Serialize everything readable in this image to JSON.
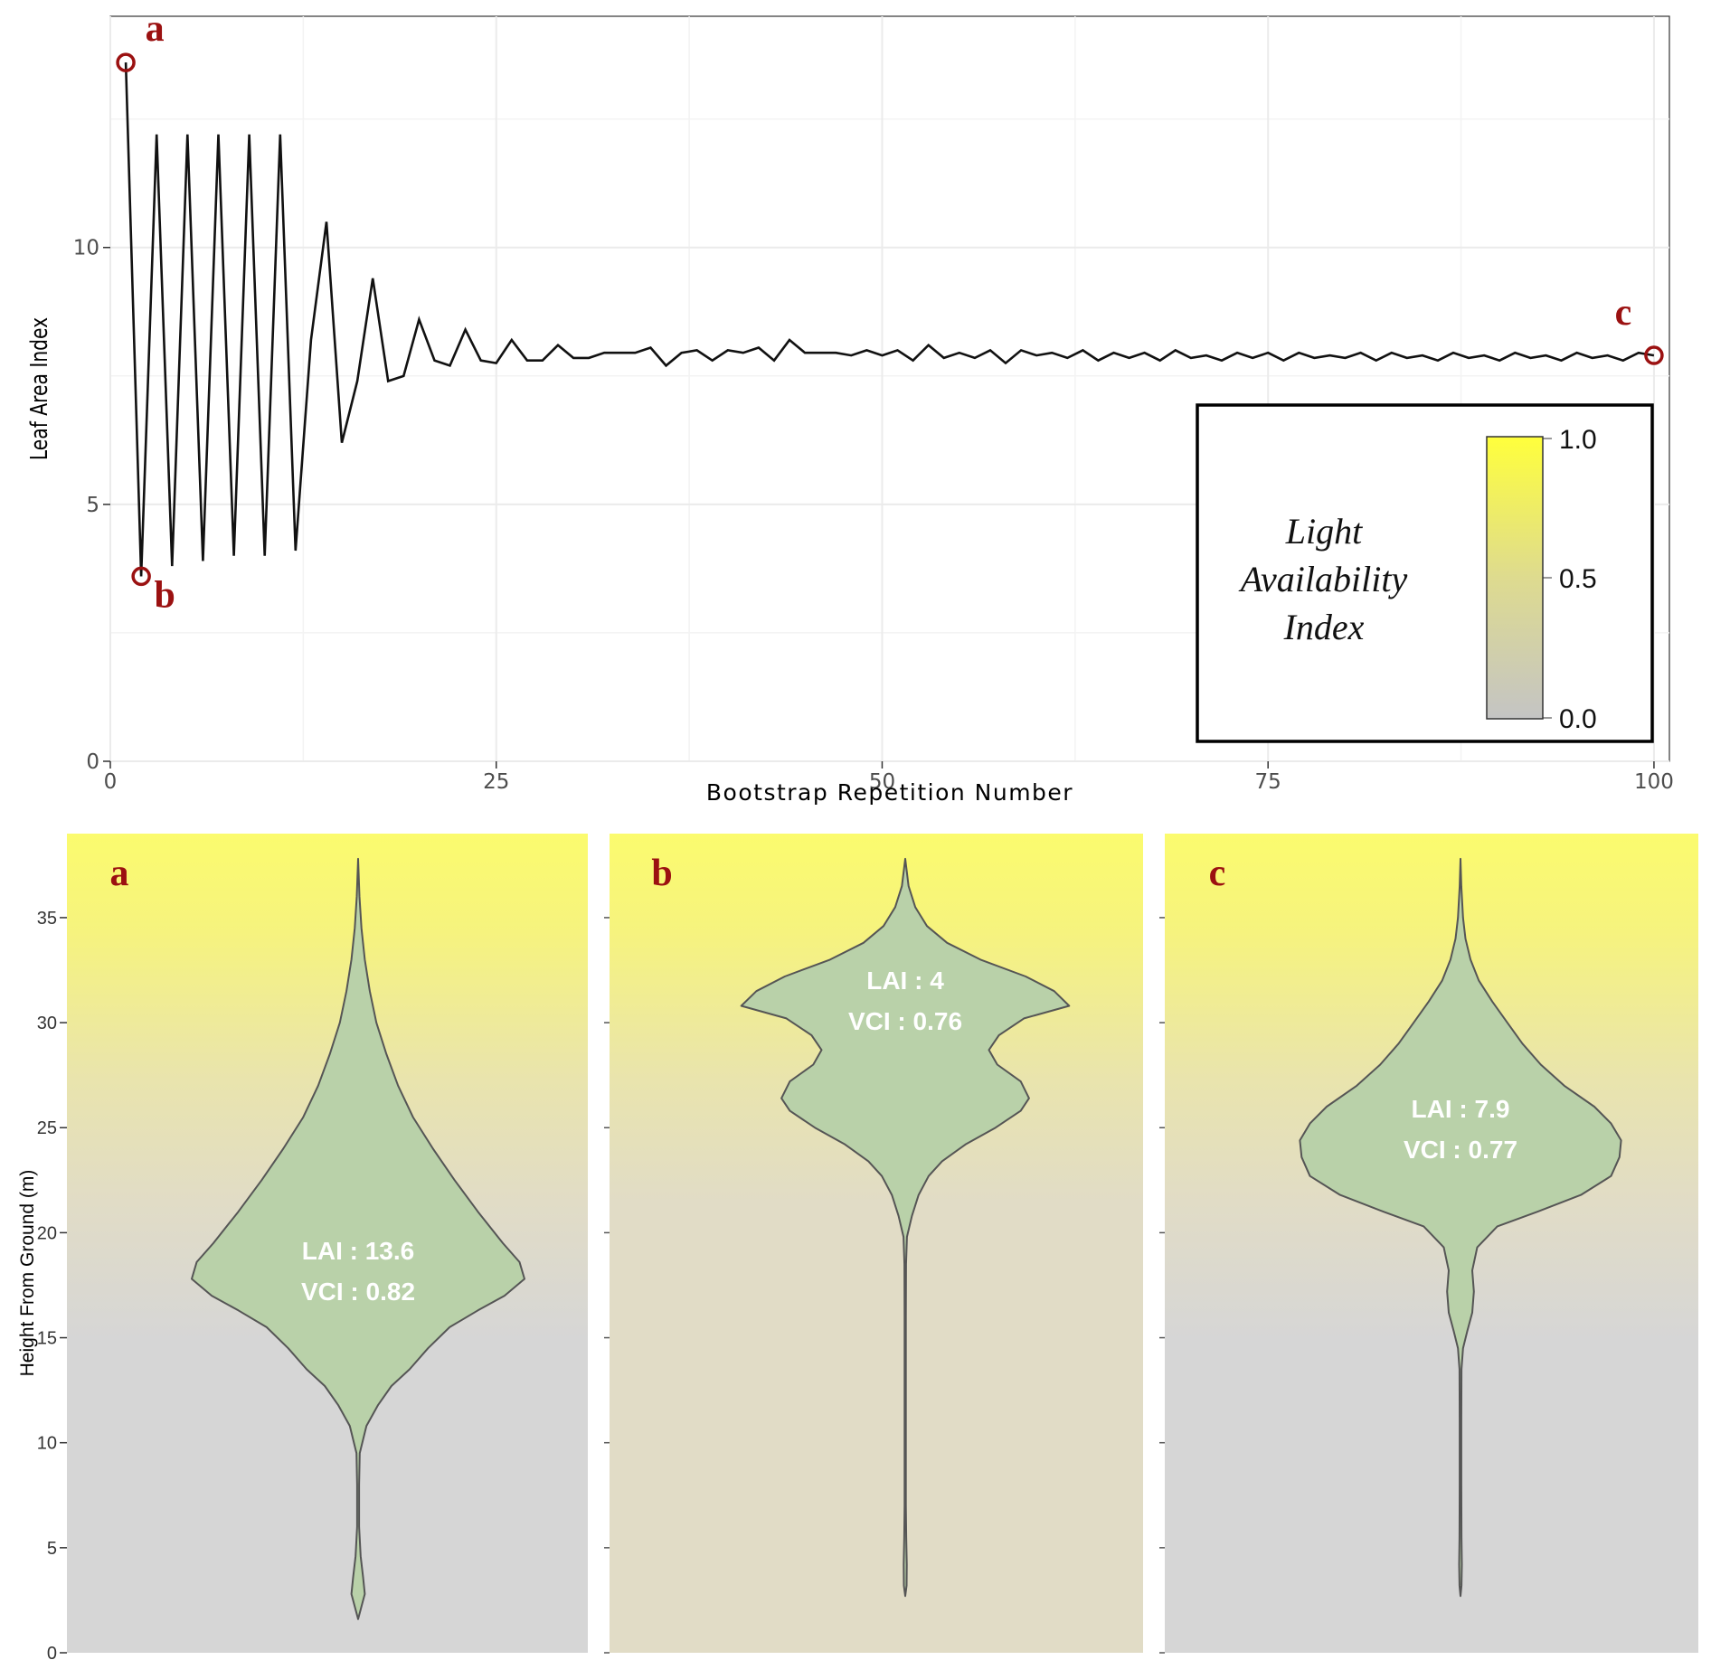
{
  "colors": {
    "line": "#111111",
    "marker": "#9b1111",
    "violin_fill": "#b9d1a9",
    "violin_stroke": "#555555",
    "light_high": "#fbfb6e",
    "light_mid": "#e1dcc6",
    "light_low": "#d6d6d6",
    "grid": "#ebebeb"
  },
  "chart_data": [
    {
      "type": "line",
      "xlabel": "Bootstrap Repetition Number",
      "ylabel": "Leaf Area Index",
      "xlim": [
        0,
        101
      ],
      "ylim": [
        0,
        14.5
      ],
      "xticks": [
        0,
        25,
        50,
        75,
        100
      ],
      "yticks": [
        0,
        5,
        10
      ],
      "x": [
        1,
        2,
        3,
        4,
        5,
        6,
        7,
        8,
        9,
        10,
        11,
        12,
        13,
        14,
        15,
        16,
        17,
        18,
        19,
        20,
        21,
        22,
        23,
        24,
        25,
        26,
        27,
        28,
        29,
        30,
        31,
        32,
        33,
        34,
        35,
        36,
        37,
        38,
        39,
        40,
        41,
        42,
        43,
        44,
        45,
        46,
        47,
        48,
        49,
        50,
        51,
        52,
        53,
        54,
        55,
        56,
        57,
        58,
        59,
        60,
        61,
        62,
        63,
        64,
        65,
        66,
        67,
        68,
        69,
        70,
        71,
        72,
        73,
        74,
        75,
        76,
        77,
        78,
        79,
        80,
        81,
        82,
        83,
        84,
        85,
        86,
        87,
        88,
        89,
        90,
        91,
        92,
        93,
        94,
        95,
        96,
        97,
        98,
        99,
        100
      ],
      "y": [
        13.6,
        3.6,
        12.2,
        3.8,
        12.2,
        3.9,
        12.2,
        4.0,
        12.2,
        4.0,
        12.2,
        4.1,
        8.2,
        10.5,
        6.2,
        7.4,
        9.4,
        7.4,
        7.5,
        8.6,
        7.8,
        7.7,
        8.4,
        7.8,
        7.75,
        8.2,
        7.8,
        7.8,
        8.1,
        7.85,
        7.85,
        7.95,
        7.95,
        7.95,
        8.05,
        7.7,
        7.95,
        8.0,
        7.8,
        8.0,
        7.95,
        8.05,
        7.8,
        8.2,
        7.95,
        7.95,
        7.95,
        7.9,
        8.0,
        7.9,
        8.0,
        7.8,
        8.1,
        7.85,
        7.95,
        7.85,
        8.0,
        7.75,
        8.0,
        7.9,
        7.95,
        7.85,
        8.0,
        7.8,
        7.95,
        7.85,
        7.95,
        7.8,
        8.0,
        7.85,
        7.9,
        7.8,
        7.95,
        7.85,
        7.95,
        7.8,
        7.95,
        7.85,
        7.9,
        7.85,
        7.95,
        7.8,
        7.95,
        7.85,
        7.9,
        7.8,
        7.95,
        7.85,
        7.9,
        7.8,
        7.95,
        7.85,
        7.9,
        7.8,
        7.95,
        7.85,
        7.9,
        7.8,
        7.95,
        7.9
      ],
      "highlights": [
        {
          "label": "a",
          "x": 1,
          "y": 13.6
        },
        {
          "label": "b",
          "x": 2,
          "y": 3.6
        },
        {
          "label": "c",
          "x": 100,
          "y": 7.9
        }
      ],
      "legend": {
        "title_lines": [
          "Light",
          "Availability",
          "Index"
        ],
        "ticks": [
          "1.0",
          "0.5",
          "0.0"
        ],
        "range": [
          0,
          1
        ],
        "placement": "bottom-right"
      }
    },
    {
      "type": "violin",
      "ylabel": "Height From Ground (m)",
      "ylim": [
        0,
        39
      ],
      "yticks": [
        0,
        5,
        10,
        15,
        20,
        25,
        30,
        35
      ],
      "panels": [
        {
          "label": "a",
          "lai_text": "LAI : 13.6",
          "vci_text": "VCI : 0.82",
          "height_range": [
            1.6,
            37.8
          ],
          "profile": [
            [
              1.6,
              0
            ],
            [
              2.2,
              0.02
            ],
            [
              2.8,
              0.04
            ],
            [
              3.6,
              0.03
            ],
            [
              4.6,
              0.015
            ],
            [
              6,
              0.006
            ],
            [
              8,
              0.006
            ],
            [
              9.5,
              0.01
            ],
            [
              10.8,
              0.05
            ],
            [
              11.8,
              0.12
            ],
            [
              12.7,
              0.2
            ],
            [
              13.5,
              0.31
            ],
            [
              14.5,
              0.42
            ],
            [
              15.5,
              0.55
            ],
            [
              16.3,
              0.72
            ],
            [
              17.0,
              0.88
            ],
            [
              17.8,
              1.0
            ],
            [
              18.6,
              0.97
            ],
            [
              19.5,
              0.87
            ],
            [
              21,
              0.72
            ],
            [
              22.5,
              0.58
            ],
            [
              24,
              0.45
            ],
            [
              25.5,
              0.33
            ],
            [
              27,
              0.24
            ],
            [
              28.5,
              0.17
            ],
            [
              30,
              0.11
            ],
            [
              31.5,
              0.07
            ],
            [
              33,
              0.04
            ],
            [
              34.5,
              0.02
            ],
            [
              36,
              0.008
            ],
            [
              37.8,
              0
            ]
          ]
        },
        {
          "label": "b",
          "lai_text": "LAI : 4",
          "vci_text": "VCI : 0.76",
          "height_range": [
            2.7,
            37.8
          ],
          "profile": [
            [
              2.7,
              0
            ],
            [
              3.2,
              0.008
            ],
            [
              4.2,
              0.009
            ],
            [
              5.5,
              0.006
            ],
            [
              7,
              0.004
            ],
            [
              10,
              0.004
            ],
            [
              13,
              0.004
            ],
            [
              16,
              0.004
            ],
            [
              18.5,
              0.005
            ],
            [
              19.8,
              0.01
            ],
            [
              20.8,
              0.04
            ],
            [
              21.8,
              0.08
            ],
            [
              22.7,
              0.14
            ],
            [
              23.4,
              0.22
            ],
            [
              24.2,
              0.36
            ],
            [
              25,
              0.54
            ],
            [
              25.8,
              0.69
            ],
            [
              26.4,
              0.74
            ],
            [
              27.2,
              0.69
            ],
            [
              28,
              0.55
            ],
            [
              28.7,
              0.5
            ],
            [
              29.4,
              0.56
            ],
            [
              30.2,
              0.71
            ],
            [
              30.8,
              0.98
            ],
            [
              31.5,
              0.89
            ],
            [
              32.2,
              0.72
            ],
            [
              33,
              0.45
            ],
            [
              33.8,
              0.25
            ],
            [
              34.6,
              0.13
            ],
            [
              35.5,
              0.06
            ],
            [
              36.5,
              0.02
            ],
            [
              37.8,
              0
            ]
          ]
        },
        {
          "label": "c",
          "lai_text": "LAI : 7.9",
          "vci_text": "VCI : 0.77",
          "height_range": [
            2.7,
            37.8
          ],
          "profile": [
            [
              2.7,
              0
            ],
            [
              3.2,
              0.006
            ],
            [
              4.2,
              0.008
            ],
            [
              5.5,
              0.006
            ],
            [
              8,
              0.005
            ],
            [
              11,
              0.005
            ],
            [
              13.5,
              0.006
            ],
            [
              14.5,
              0.015
            ],
            [
              15.3,
              0.04
            ],
            [
              16.2,
              0.07
            ],
            [
              17.2,
              0.08
            ],
            [
              18.2,
              0.07
            ],
            [
              19.3,
              0.1
            ],
            [
              20.3,
              0.22
            ],
            [
              21,
              0.46
            ],
            [
              21.8,
              0.72
            ],
            [
              22.7,
              0.9
            ],
            [
              23.6,
              0.95
            ],
            [
              24.4,
              0.96
            ],
            [
              25.2,
              0.9
            ],
            [
              26,
              0.8
            ],
            [
              27,
              0.62
            ],
            [
              28,
              0.48
            ],
            [
              29,
              0.37
            ],
            [
              30,
              0.28
            ],
            [
              31,
              0.19
            ],
            [
              32,
              0.11
            ],
            [
              33,
              0.06
            ],
            [
              34,
              0.03
            ],
            [
              35,
              0.015
            ],
            [
              36.5,
              0.005
            ],
            [
              37.8,
              0
            ]
          ]
        }
      ]
    }
  ]
}
